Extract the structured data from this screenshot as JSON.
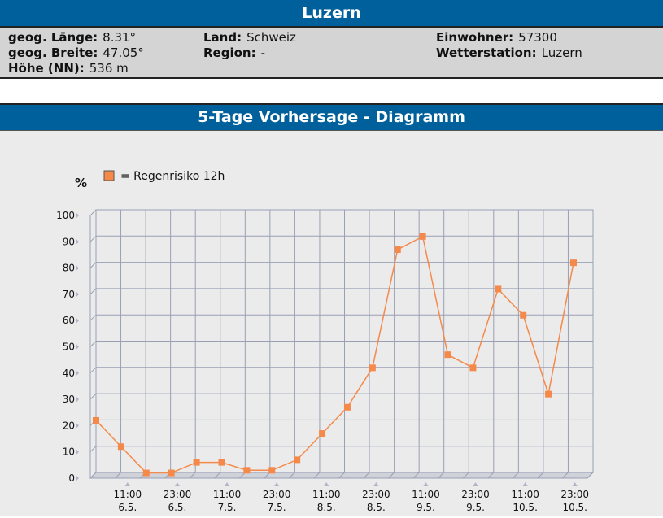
{
  "info": {
    "title": "Luzern",
    "laenge_label": "geog. Länge:",
    "laenge": "8.31°",
    "breite_label": "geog. Breite:",
    "breite": "47.05°",
    "hoehe_label": "Höhe (NN):",
    "hoehe": "536 m",
    "land_label": "Land:",
    "land": "Schweiz",
    "region_label": "Region:",
    "region": "-",
    "einwohner_label": "Einwohner:",
    "einwohner": "57300",
    "station_label": "Wetterstation:",
    "station": "Luzern"
  },
  "forecast": {
    "title": "5-Tage Vorhersage - Diagramm"
  },
  "chart_data": {
    "type": "line",
    "ylabel": "%",
    "ylim": [
      0,
      100
    ],
    "yticks": [
      0,
      10,
      20,
      30,
      40,
      50,
      60,
      70,
      80,
      90,
      100
    ],
    "legend": "= Regenrisiko 12h",
    "legend_position": "top-left",
    "grid": true,
    "color": "#f5894a",
    "x_labels": [
      {
        "time": "11:00",
        "date": "6.5."
      },
      {
        "time": "23:00",
        "date": "6.5."
      },
      {
        "time": "11:00",
        "date": "7.5."
      },
      {
        "time": "23:00",
        "date": "7.5."
      },
      {
        "time": "11:00",
        "date": "8.5."
      },
      {
        "time": "23:00",
        "date": "8.5."
      },
      {
        "time": "11:00",
        "date": "9.5."
      },
      {
        "time": "23:00",
        "date": "9.5."
      },
      {
        "time": "11:00",
        "date": "10.5."
      },
      {
        "time": "23:00",
        "date": "10.5."
      }
    ],
    "values": [
      22,
      12,
      2,
      2,
      6,
      6,
      3,
      3,
      7,
      17,
      27,
      42,
      87,
      92,
      47,
      42,
      72,
      62,
      32,
      82
    ]
  }
}
